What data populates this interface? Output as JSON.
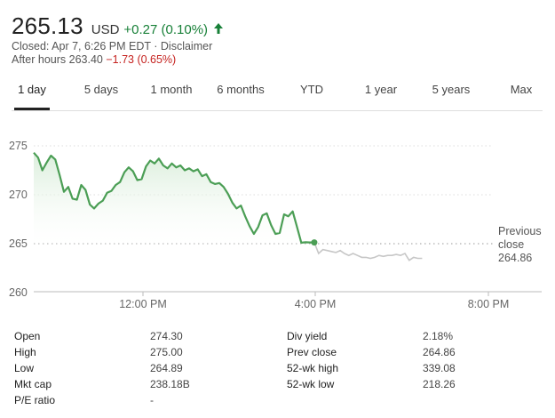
{
  "quote": {
    "price": "265.13",
    "currency": "USD",
    "change": "+0.27 (0.10%)",
    "direction_icon": "arrow-up-icon",
    "status": "Closed: Apr 7, 6:26 PM EDT · Disclaimer",
    "after_hours_label": "After hours 263.40",
    "after_hours_change": "−1.73 (0.65%)"
  },
  "colors": {
    "up": "#188038",
    "down": "#c5221f",
    "line": "#4b9e55",
    "after_hours_line": "#c7c7c7"
  },
  "tabs": [
    {
      "label": "1 day",
      "active": true
    },
    {
      "label": "5 days"
    },
    {
      "label": "1 month"
    },
    {
      "label": "6 months"
    },
    {
      "label": "YTD"
    },
    {
      "label": "1 year"
    },
    {
      "label": "5 years"
    },
    {
      "label": "Max"
    }
  ],
  "chart_data": {
    "type": "line",
    "y_ticks": [
      "275",
      "270",
      "265",
      "260"
    ],
    "x_ticks": [
      "12:00 PM",
      "4:00 PM",
      "8:00 PM"
    ],
    "ylim": [
      260,
      276.5
    ],
    "grid": "horizontal dotted",
    "previous_close": {
      "label_line1": "Previous",
      "label_line2": "close",
      "value": 264.86
    },
    "regular_session": {
      "x_hours": [
        9.5,
        9.6,
        9.7,
        9.8,
        9.9,
        10.0,
        10.1,
        10.2,
        10.3,
        10.4,
        10.5,
        10.6,
        10.7,
        10.8,
        10.9,
        11.0,
        11.1,
        11.2,
        11.3,
        11.4,
        11.5,
        11.6,
        11.7,
        11.8,
        11.9,
        12.0,
        12.1,
        12.2,
        12.3,
        12.4,
        12.5,
        12.6,
        12.7,
        12.8,
        12.9,
        13.0,
        13.1,
        13.2,
        13.3,
        13.4,
        13.5,
        13.6,
        13.7,
        13.8,
        13.9,
        14.0,
        14.1,
        14.2,
        14.3,
        14.4,
        14.5,
        14.6,
        14.7,
        14.8,
        14.9,
        15.0,
        15.1,
        15.2,
        15.3,
        15.4,
        15.5,
        15.6,
        15.7,
        15.8,
        15.9,
        16.0
      ],
      "values": [
        274.3,
        273.8,
        272.5,
        273.3,
        274.0,
        273.6,
        272.0,
        270.3,
        270.8,
        269.6,
        269.5,
        271.0,
        270.5,
        269.0,
        268.6,
        269.1,
        269.4,
        270.2,
        270.4,
        271.0,
        271.3,
        272.3,
        272.8,
        272.4,
        271.5,
        271.6,
        272.9,
        273.5,
        273.2,
        273.7,
        273.0,
        272.7,
        273.2,
        272.8,
        273.0,
        272.5,
        272.7,
        272.4,
        272.6,
        271.9,
        272.1,
        271.3,
        271.1,
        271.2,
        270.8,
        270.1,
        269.2,
        268.6,
        268.9,
        267.8,
        266.8,
        266.0,
        266.7,
        267.9,
        268.1,
        266.9,
        266.0,
        266.1,
        268.0,
        267.8,
        268.3,
        266.7,
        265.1,
        265.15,
        265.13,
        265.13
      ],
      "end_marker_value": 265.13
    },
    "after_hours": {
      "x_hours": [
        16.0,
        16.1,
        16.2,
        16.3,
        16.4,
        16.5,
        16.6,
        16.7,
        16.8,
        16.9,
        17.0,
        17.1,
        17.2,
        17.3,
        17.4,
        17.5,
        17.6,
        17.7,
        17.8,
        17.9,
        18.0,
        18.1,
        18.2,
        18.3,
        18.4,
        18.5
      ],
      "values": [
        265.13,
        264.0,
        264.4,
        264.3,
        264.2,
        264.1,
        264.3,
        264.0,
        263.8,
        264.0,
        263.8,
        263.6,
        263.6,
        263.5,
        263.6,
        263.8,
        263.7,
        263.8,
        263.8,
        263.9,
        263.8,
        264.0,
        263.3,
        263.6,
        263.5,
        263.5
      ]
    }
  },
  "stats": {
    "left": [
      {
        "label": "Open",
        "value": "274.30"
      },
      {
        "label": "High",
        "value": "275.00"
      },
      {
        "label": "Low",
        "value": "264.89"
      },
      {
        "label": "Mkt cap",
        "value": "238.18B"
      },
      {
        "label": "P/E ratio",
        "value": "-"
      }
    ],
    "right": [
      {
        "label": "Div yield",
        "value": "2.18%"
      },
      {
        "label": "Prev close",
        "value": "264.86"
      },
      {
        "label": "52-wk high",
        "value": "339.08"
      },
      {
        "label": "52-wk low",
        "value": "218.26"
      }
    ]
  }
}
